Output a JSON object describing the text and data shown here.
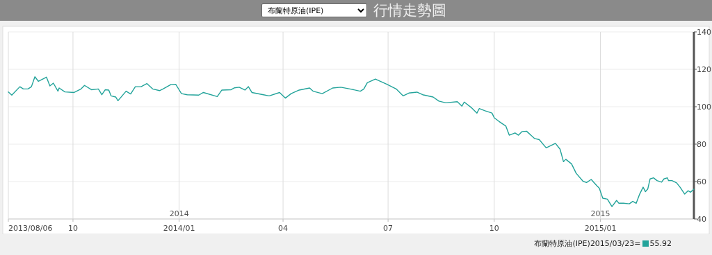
{
  "chart_data": {
    "type": "line",
    "title": "行情走勢圖",
    "x": [
      "2013-08-06",
      "2013-08-09",
      "2013-08-16",
      "2013-08-19",
      "2013-08-23",
      "2013-08-26",
      "2013-08-29",
      "2013-09-01",
      "2013-09-08",
      "2013-09-11",
      "2013-09-14",
      "2013-09-18",
      "2013-09-19",
      "2013-09-24",
      "2013-10-02",
      "2013-10-08",
      "2013-10-11",
      "2013-10-17",
      "2013-10-23",
      "2013-10-26",
      "2013-10-29",
      "2013-11-01",
      "2013-11-03",
      "2013-11-07",
      "2013-11-09",
      "2013-11-16",
      "2013-11-20",
      "2013-11-24",
      "2013-11-29",
      "2013-12-04",
      "2013-12-09",
      "2013-12-15",
      "2013-12-18",
      "2013-12-25",
      "2013-12-29",
      "2014-01-03",
      "2014-01-08",
      "2014-01-18",
      "2014-01-22",
      "2014-02-03",
      "2014-02-07",
      "2014-02-15",
      "2014-02-18",
      "2014-02-22",
      "2014-02-27",
      "2014-03-02",
      "2014-03-05",
      "2014-03-15",
      "2014-03-20",
      "2014-03-29",
      "2014-04-03",
      "2014-04-08",
      "2014-04-15",
      "2014-04-24",
      "2014-04-27",
      "2014-05-05",
      "2014-05-14",
      "2014-05-21",
      "2014-05-29",
      "2014-06-07",
      "2014-06-10",
      "2014-06-13",
      "2014-06-20",
      "2014-06-30",
      "2014-07-08",
      "2014-07-14",
      "2014-07-19",
      "2014-07-26",
      "2014-07-31",
      "2014-08-09",
      "2014-08-14",
      "2014-08-20",
      "2014-08-30",
      "2014-09-03",
      "2014-09-05",
      "2014-09-11",
      "2014-09-16",
      "2014-09-18",
      "2014-09-23",
      "2014-09-29",
      "2014-10-01",
      "2014-10-05",
      "2014-10-11",
      "2014-10-14",
      "2014-10-19",
      "2014-10-22",
      "2014-10-25",
      "2014-10-29",
      "2014-11-05",
      "2014-11-09",
      "2014-11-15",
      "2014-11-23",
      "2014-11-27",
      "2014-11-30",
      "2014-12-02",
      "2014-12-07",
      "2014-12-11",
      "2014-12-17",
      "2014-12-20",
      "2014-12-24",
      "2014-12-29",
      "2014-12-31",
      "2015-01-03",
      "2015-01-07",
      "2015-01-11",
      "2015-01-15",
      "2015-01-17",
      "2015-01-21",
      "2015-01-26",
      "2015-01-29",
      "2015-02-01",
      "2015-02-04",
      "2015-02-07",
      "2015-02-09",
      "2015-02-11",
      "2015-02-13",
      "2015-02-16",
      "2015-02-19",
      "2015-02-23",
      "2015-02-25",
      "2015-02-28",
      "2015-03-01",
      "2015-03-04",
      "2015-03-08",
      "2015-03-11",
      "2015-03-15",
      "2015-03-18",
      "2015-03-20",
      "2015-03-23"
    ],
    "series": [
      {
        "name": "布蘭特原油(IPE)",
        "color": "#22a39a",
        "values": [
          107.9,
          106.2,
          110.7,
          109.5,
          109.5,
          110.7,
          116.0,
          113.6,
          115.8,
          111.1,
          112.6,
          108.3,
          110.0,
          107.9,
          107.6,
          109.5,
          111.4,
          109.1,
          109.5,
          106.4,
          109.1,
          108.9,
          105.8,
          105.2,
          103.2,
          108.3,
          106.8,
          110.7,
          110.7,
          112.4,
          109.5,
          108.6,
          109.5,
          111.9,
          112.0,
          107.0,
          106.4,
          106.2,
          107.6,
          105.4,
          108.9,
          109.1,
          110.1,
          110.4,
          108.9,
          110.7,
          107.6,
          106.4,
          105.8,
          107.6,
          104.6,
          107.0,
          108.9,
          110.0,
          108.3,
          107.0,
          110.0,
          110.4,
          109.5,
          108.3,
          109.5,
          112.8,
          114.8,
          112.0,
          109.5,
          105.8,
          107.3,
          107.8,
          106.4,
          105.2,
          103.0,
          102.1,
          102.7,
          100.3,
          102.5,
          99.6,
          96.6,
          99.0,
          97.8,
          96.6,
          94.1,
          92.2,
          89.7,
          84.8,
          86.0,
          84.8,
          86.7,
          86.9,
          83.0,
          82.4,
          78.0,
          80.4,
          77.3,
          70.6,
          71.9,
          69.4,
          64.4,
          60.1,
          59.5,
          61.1,
          57.7,
          56.5,
          51.1,
          50.6,
          46.6,
          49.9,
          48.4,
          48.4,
          48.1,
          49.4,
          48.4,
          53.3,
          57.0,
          54.6,
          56.0,
          61.4,
          62.0,
          60.5,
          59.7,
          61.4,
          62.0,
          60.5,
          60.5,
          59.3,
          57.0,
          53.3,
          55.1,
          54.3,
          55.9
        ]
      }
    ],
    "xlim": [
      "2013-08-06",
      "2015-03-23"
    ],
    "xticks": [
      {
        "value": "2013-08-06",
        "label": "2013/08/06"
      },
      {
        "value": "2013-10-01",
        "label": "10"
      },
      {
        "value": "2014-01-01",
        "label": "2014/01"
      },
      {
        "value": "2014-04-01",
        "label": "04"
      },
      {
        "value": "2014-07-01",
        "label": "07"
      },
      {
        "value": "2014-10-01",
        "label": "10"
      },
      {
        "value": "2015-01-01",
        "label": "2015/01"
      }
    ],
    "ylim": [
      40,
      140
    ],
    "yticks": [
      40,
      60,
      80,
      100,
      120,
      140
    ],
    "subtitle": "布蘭特原油(IPE)",
    "x2lim": [
      "2013-08-06",
      "2015-03-23"
    ],
    "x2ticks": [
      {
        "value": "2014-01-01",
        "label": "2014"
      },
      {
        "value": "2015-01-01",
        "label": "2015"
      }
    ],
    "annotations": [
      "2015/03/23=",
      "55.92"
    ],
    "grid": true,
    "legend": "bottom right",
    "marker": "none",
    "line_style": "solid"
  }
}
